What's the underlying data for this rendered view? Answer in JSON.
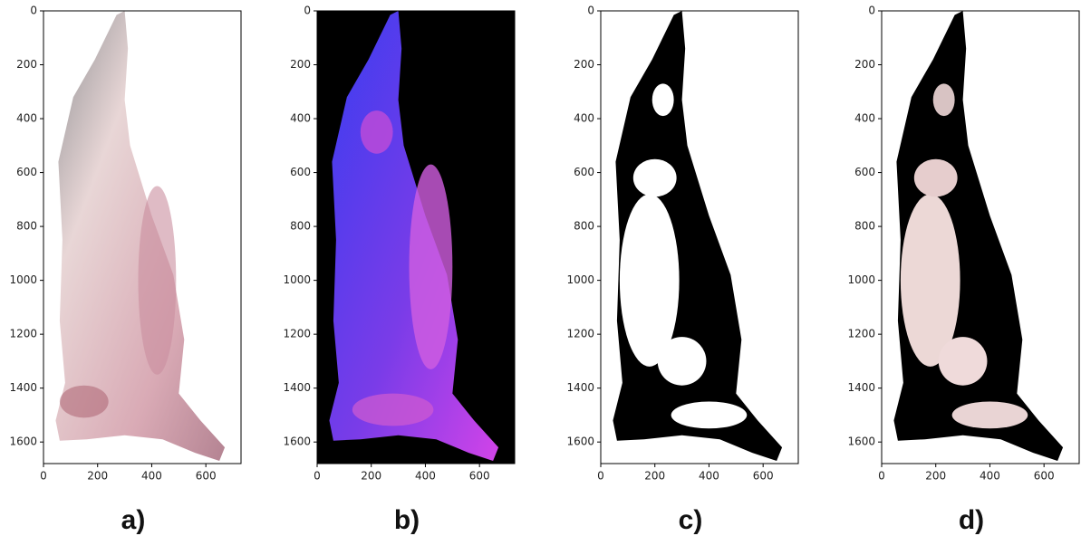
{
  "panels": [
    {
      "label": "a)",
      "xlim": [
        0,
        730
      ],
      "ylim": [
        0,
        1680
      ],
      "xticks": [
        0,
        200,
        400,
        600
      ],
      "yticks": [
        0,
        200,
        400,
        600,
        800,
        1000,
        1200,
        1400,
        1600
      ]
    },
    {
      "label": "b)",
      "xlim": [
        0,
        730
      ],
      "ylim": [
        0,
        1680
      ],
      "xticks": [
        0,
        200,
        400,
        600
      ],
      "yticks": [
        0,
        200,
        400,
        600,
        800,
        1000,
        1200,
        1400,
        1600
      ]
    },
    {
      "label": "c)",
      "xlim": [
        0,
        730
      ],
      "ylim": [
        0,
        1680
      ],
      "xticks": [
        0,
        200,
        400,
        600
      ],
      "yticks": [
        0,
        200,
        400,
        600,
        800,
        1000,
        1200,
        1400,
        1600
      ]
    },
    {
      "label": "d)",
      "xlim": [
        0,
        730
      ],
      "ylim": [
        0,
        1680
      ],
      "xticks": [
        0,
        200,
        400,
        600
      ],
      "yticks": [
        0,
        200,
        400,
        600,
        800,
        1000,
        1200,
        1400,
        1600
      ]
    }
  ]
}
